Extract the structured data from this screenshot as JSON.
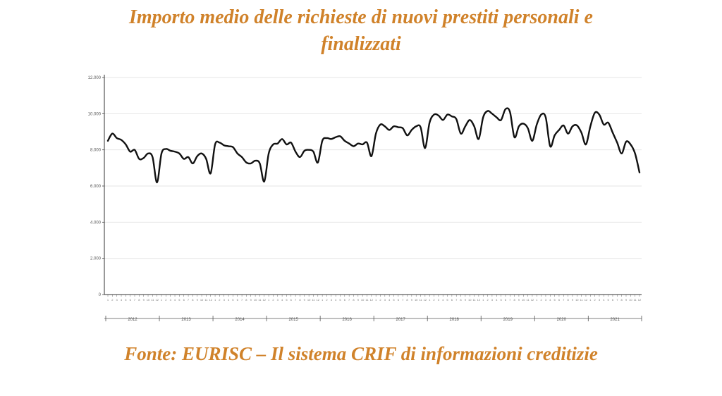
{
  "title_line1": "Importo medio delle richieste di nuovi prestiti personali e",
  "title_line2": "finalizzati",
  "source": "Fonte: EURISC – Il sistema CRIF di informazioni creditizie",
  "colors": {
    "title": "#d0822a",
    "line": "#111111",
    "grid": "#e6e6e6"
  },
  "chart_data": {
    "type": "line",
    "y_ticks": [
      "0",
      "2.000",
      "4.000",
      "6.000",
      "8.000",
      "10.000",
      "12.000"
    ],
    "ylim": [
      0,
      12000
    ],
    "years": [
      "2012",
      "2013",
      "2014",
      "2015",
      "2016",
      "2017",
      "2018",
      "2019",
      "2020",
      "2021"
    ],
    "month_labels": [
      "1",
      "2",
      "3",
      "4",
      "5",
      "6",
      "7",
      "8",
      "9",
      "10",
      "11",
      "12"
    ],
    "grid": true,
    "series": [
      {
        "values": [
          8500,
          8900,
          8650,
          8550,
          8300,
          7900,
          8000,
          7500,
          7550,
          7800,
          7600,
          6200,
          7800,
          8050,
          7950,
          7900,
          7800,
          7500,
          7600,
          7250,
          7650,
          7800,
          7500,
          6700,
          8300,
          8400,
          8250,
          8200,
          8150,
          7800,
          7600,
          7300,
          7250,
          7400,
          7250,
          6250,
          7800,
          8300,
          8350,
          8600,
          8300,
          8400,
          7900,
          7600,
          7950,
          8000,
          7900,
          7300,
          8500,
          8650,
          8600,
          8700,
          8750,
          8500,
          8350,
          8200,
          8350,
          8300,
          8400,
          7650,
          8900,
          9400,
          9300,
          9100,
          9300,
          9250,
          9200,
          8800,
          9100,
          9300,
          9250,
          8100,
          9500,
          9950,
          9900,
          9650,
          9950,
          9850,
          9700,
          8900,
          9300,
          9650,
          9300,
          8600,
          9800,
          10150,
          10000,
          9800,
          9650,
          10250,
          10100,
          8700,
          9300,
          9450,
          9200,
          8500,
          9400,
          9950,
          9800,
          8200,
          8800,
          9100,
          9350,
          8900,
          9300,
          9350,
          8950,
          8300,
          9300,
          10050,
          9950,
          9400,
          9500,
          8950,
          8400,
          7800,
          8450,
          8300,
          7800,
          6750
        ]
      }
    ]
  }
}
